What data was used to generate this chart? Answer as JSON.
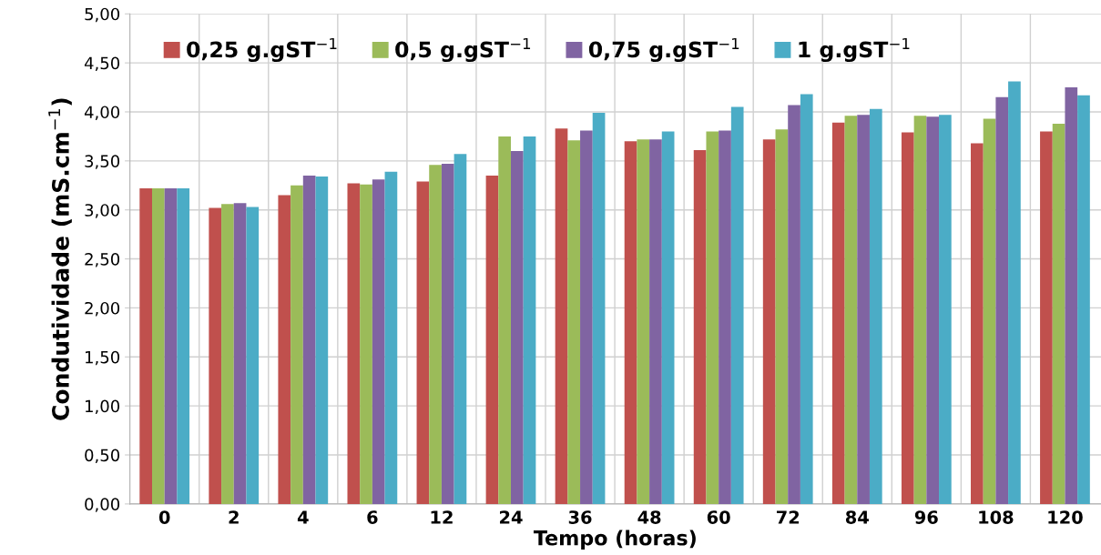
{
  "chart_data": {
    "type": "bar",
    "xlabel": "Tempo (horas)",
    "ylabel": "Condutividade (mS.cm$^{−1}$)",
    "categories": [
      "0",
      "2",
      "4",
      "6",
      "12",
      "24",
      "36",
      "48",
      "60",
      "72",
      "84",
      "96",
      "108",
      "120"
    ],
    "series": [
      {
        "name": "0,25 g.gST$^{−1}$",
        "color": "#c0504d",
        "values": [
          3.22,
          3.02,
          3.15,
          3.27,
          3.29,
          3.35,
          3.83,
          3.7,
          3.61,
          3.72,
          3.89,
          3.79,
          3.68,
          3.8
        ]
      },
      {
        "name": "0,5 g.gST$^{−1}$",
        "color": "#9bbb59",
        "values": [
          3.22,
          3.06,
          3.25,
          3.26,
          3.46,
          3.75,
          3.71,
          3.72,
          3.8,
          3.82,
          3.96,
          3.96,
          3.93,
          3.88
        ]
      },
      {
        "name": "0,75 g.gST$^{−1}$",
        "color": "#8064a2",
        "values": [
          3.22,
          3.07,
          3.35,
          3.31,
          3.47,
          3.6,
          3.81,
          3.72,
          3.81,
          4.07,
          3.97,
          3.95,
          4.15,
          4.25
        ]
      },
      {
        "name": "1 g.gST$^{−1}$",
        "color": "#4bacc6",
        "values": [
          3.22,
          3.03,
          3.34,
          3.39,
          3.57,
          3.75,
          3.99,
          3.8,
          4.05,
          4.18,
          4.03,
          3.97,
          4.31,
          4.17
        ]
      }
    ],
    "ylim": [
      0,
      5
    ],
    "yticks": [
      {
        "value": 0,
        "label": "0,00"
      },
      {
        "value": 0.5,
        "label": "0,50"
      },
      {
        "value": 1,
        "label": "1,00"
      },
      {
        "value": 1.5,
        "label": "1,50"
      },
      {
        "value": 2,
        "label": "2,00"
      },
      {
        "value": 2.5,
        "label": "2,50"
      },
      {
        "value": 3,
        "label": "3,00"
      },
      {
        "value": 3.5,
        "label": "3,50"
      },
      {
        "value": 4,
        "label": "4,00"
      },
      {
        "value": 4.5,
        "label": "4,50"
      },
      {
        "value": 5,
        "label": "5,00"
      }
    ],
    "grid": true,
    "legend": "top"
  }
}
